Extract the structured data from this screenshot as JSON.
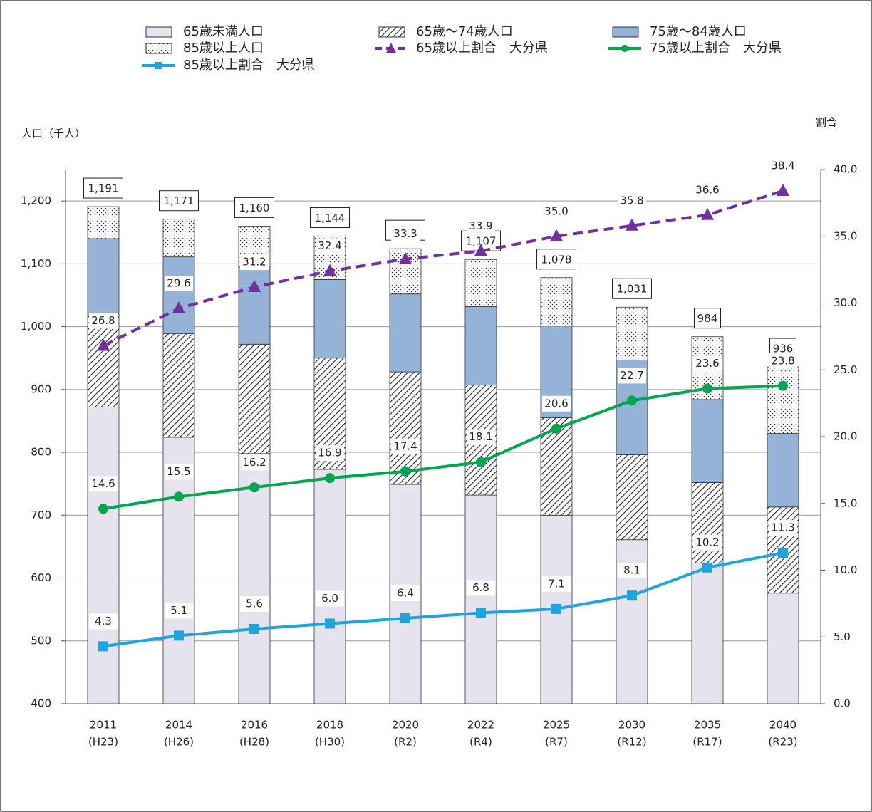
{
  "chart_data": {
    "type": "bar_line",
    "ylabel": "人口（千人）",
    "y2label": "割合",
    "categories": [
      [
        "2011",
        "(H23)"
      ],
      [
        "2014",
        "(H26)"
      ],
      [
        "2016",
        "(H28)"
      ],
      [
        "2018",
        "(H30)"
      ],
      [
        "2020",
        "(R2)"
      ],
      [
        "2022",
        "(R4)"
      ],
      [
        "2025",
        "(R7)"
      ],
      [
        "2030",
        "(R12)"
      ],
      [
        "2035",
        "(R17)"
      ],
      [
        "2040",
        "(R23)"
      ]
    ],
    "ylim": [
      400,
      1250
    ],
    "yticks": [
      400,
      500,
      600,
      700,
      800,
      900,
      {
        "value": 1000,
        "label": "1,000"
      },
      {
        "value": 1100,
        "label": "1,100"
      },
      {
        "value": 1200,
        "label": "1,200"
      }
    ],
    "y2lim": [
      0,
      40
    ],
    "y2ticks": [
      {
        "value": 0,
        "label": "0.0"
      },
      {
        "value": 5,
        "label": "5.0"
      },
      {
        "value": 10,
        "label": "10.0"
      },
      {
        "value": 15,
        "label": "15.0"
      },
      {
        "value": 20,
        "label": "20.0"
      },
      {
        "value": 25,
        "label": "25.0"
      },
      {
        "value": 30,
        "label": "30.0"
      },
      {
        "value": 35,
        "label": "35.0"
      },
      {
        "value": 40,
        "label": "40.0"
      }
    ],
    "grid": true,
    "series": [
      {
        "name": "65歳未満人口",
        "type": "bar",
        "color": "#e6e2ee",
        "values": [
          872,
          824,
          798,
          773,
          749,
          732,
          700,
          661,
          624,
          576
        ]
      },
      {
        "name": "65歳～74歳人口",
        "type": "bar",
        "color": "#ffffff",
        "pattern": "hatch",
        "values": [
          145,
          165,
          174,
          177,
          179,
          175,
          155,
          135,
          128,
          137
        ]
      },
      {
        "name": "75歳～84歳人口",
        "type": "bar",
        "color": "#95b3d7",
        "values": [
          123,
          122,
          123,
          125,
          124,
          125,
          146,
          151,
          132,
          117
        ]
      },
      {
        "name": "85歳以上人口",
        "type": "bar",
        "color": "#ffffff",
        "pattern": "dots",
        "values": [
          51,
          60,
          65,
          69,
          72,
          75,
          77,
          84,
          100,
          106
        ]
      },
      {
        "name": "65歳以上割合　大分県",
        "type": "line",
        "axis": "y2",
        "color": "#7030a0",
        "dash": true,
        "marker": "triangle",
        "values": [
          26.8,
          29.6,
          31.2,
          32.4,
          33.3,
          33.9,
          35.0,
          35.8,
          36.6,
          38.4
        ],
        "value_labels": [
          "26.8",
          "29.6",
          "31.2",
          "32.4",
          "33.3",
          "33.9",
          "35.0",
          "35.8",
          "36.6",
          "38.4"
        ]
      },
      {
        "name": "75歳以上割合　大分県",
        "type": "line",
        "axis": "y2",
        "color": "#00a650",
        "marker": "circle",
        "values": [
          14.6,
          15.5,
          16.2,
          16.9,
          17.4,
          18.1,
          20.6,
          22.7,
          23.6,
          23.8
        ],
        "value_labels": [
          "14.6",
          "15.5",
          "16.2",
          "16.9",
          "17.4",
          "18.1",
          "20.6",
          "22.7",
          "23.6",
          "23.8"
        ]
      },
      {
        "name": "85歳以上割合　大分県",
        "type": "line",
        "axis": "y2",
        "color": "#1ea5e0",
        "marker": "square",
        "values": [
          4.3,
          5.1,
          5.6,
          6.0,
          6.4,
          6.8,
          7.1,
          8.1,
          10.2,
          11.3
        ],
        "value_labels": [
          "4.3",
          "5.1",
          "5.6",
          "6.0",
          "6.4",
          "6.8",
          "7.1",
          "8.1",
          "10.2",
          "11.3"
        ]
      }
    ],
    "totals": {
      "values": [
        1191,
        1171,
        1160,
        1144,
        1124,
        1107,
        1078,
        1031,
        984,
        936
      ],
      "value_labels": [
        "1,191",
        "1,171",
        "1,160",
        "1,144",
        "1,124",
        "1,107",
        "1,078",
        "1,031",
        "984",
        "936"
      ]
    }
  }
}
